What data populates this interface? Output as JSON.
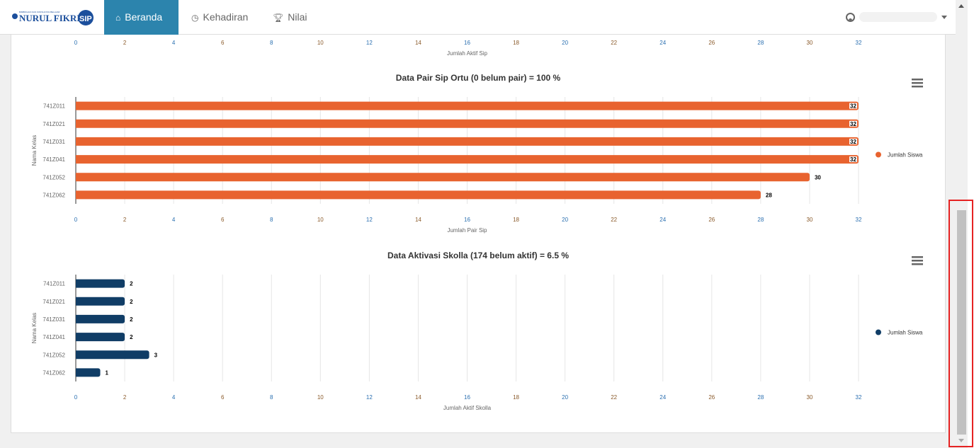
{
  "nav": {
    "logo_text": "NURUL FIKRI SIP",
    "items": [
      {
        "label": "Beranda",
        "icon": "home-icon",
        "active": true
      },
      {
        "label": "Kehadiran",
        "icon": "clock-icon"
      },
      {
        "label": "Nilai",
        "icon": "trophy-icon"
      }
    ]
  },
  "colors": {
    "accent": "#2c84ad",
    "orange": "#e8632f",
    "navy": "#103d66"
  },
  "chart_data": [
    {
      "type": "bar",
      "title": "",
      "xlabel": "Jumlah Aktif Sip",
      "ticks": [
        0,
        2,
        4,
        6,
        8,
        10,
        12,
        14,
        16,
        18,
        20,
        22,
        24,
        26,
        28,
        30,
        32
      ],
      "partial": true
    },
    {
      "type": "bar",
      "title": "Data Pair Sip Ortu (0 belum pair) = 100 %",
      "ylabel": "Nama Kelas",
      "xlabel": "Jumlah Pair Sip",
      "categories": [
        "741Z011",
        "741Z021",
        "741Z031",
        "741Z041",
        "741Z052",
        "741Z062"
      ],
      "series": [
        {
          "name": "Jumlah Siswa",
          "values": [
            32,
            32,
            32,
            32,
            30,
            28
          ],
          "color": "#e8632f"
        }
      ],
      "xlim": [
        0,
        32
      ],
      "ticks": [
        0,
        2,
        4,
        6,
        8,
        10,
        12,
        14,
        16,
        18,
        20,
        22,
        24,
        26,
        28,
        30,
        32
      ],
      "legend": "right"
    },
    {
      "type": "bar",
      "title": "Data Aktivasi Skolla (174 belum aktif) = 6.5 %",
      "ylabel": "Nama Kelas",
      "xlabel": "Jumlah Aktif Skolla",
      "categories": [
        "741Z011",
        "741Z021",
        "741Z031",
        "741Z041",
        "741Z052",
        "741Z062"
      ],
      "series": [
        {
          "name": "Jumlah Siswa",
          "values": [
            2,
            2,
            2,
            2,
            3,
            1
          ],
          "color": "#103d66"
        }
      ],
      "xlim": [
        0,
        32
      ],
      "ticks": [
        0,
        2,
        4,
        6,
        8,
        10,
        12,
        14,
        16,
        18,
        20,
        22,
        24,
        26,
        28,
        30,
        32
      ],
      "legend": "right"
    }
  ]
}
